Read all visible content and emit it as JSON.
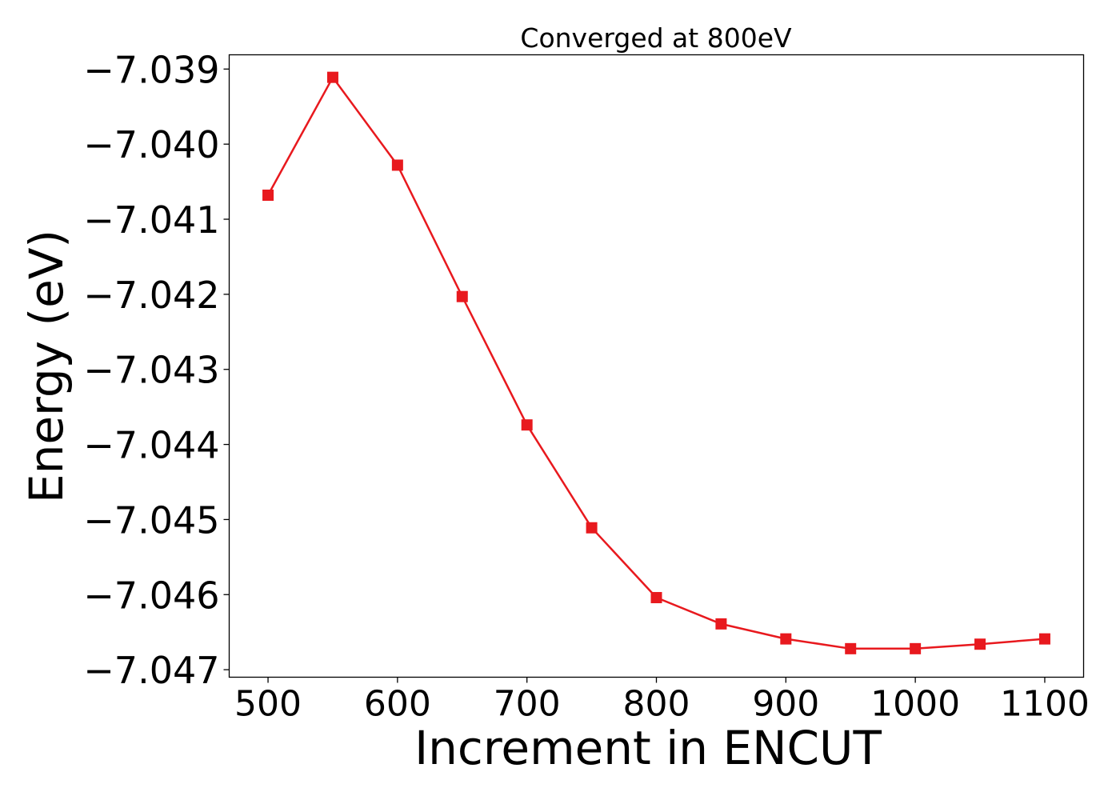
{
  "chart_data": {
    "type": "line",
    "title": "Converged at 800eV",
    "xlabel": "Increment in ENCUT",
    "ylabel": "Energy (eV)",
    "x": [
      500,
      550,
      600,
      650,
      700,
      750,
      800,
      850,
      900,
      950,
      1000,
      1050,
      1100
    ],
    "series": [
      {
        "values": [
          -7.04068,
          -7.03911,
          -7.04028,
          -7.04203,
          -7.04374,
          -7.04511,
          -7.04604,
          -7.04639,
          -7.04659,
          -7.04672,
          -7.04672,
          -7.04666,
          -7.04659
        ],
        "color": "#e8191e",
        "marker": "square"
      }
    ],
    "xticks": [
      500,
      600,
      700,
      800,
      900,
      1000,
      1100
    ],
    "yticks": [
      -7.039,
      -7.04,
      -7.041,
      -7.042,
      -7.043,
      -7.044,
      -7.045,
      -7.046,
      -7.047
    ],
    "xtick_labels": [
      "500",
      "600",
      "700",
      "800",
      "900",
      "1000",
      "1100"
    ],
    "ytick_labels": [
      "−7.039",
      "−7.040",
      "−7.041",
      "−7.042",
      "−7.043",
      "−7.044",
      "−7.045",
      "−7.046",
      "−7.047"
    ],
    "xlim": [
      470,
      1130
    ],
    "ylim": [
      -7.0471,
      -7.03881
    ],
    "grid": false,
    "legend": false
  }
}
